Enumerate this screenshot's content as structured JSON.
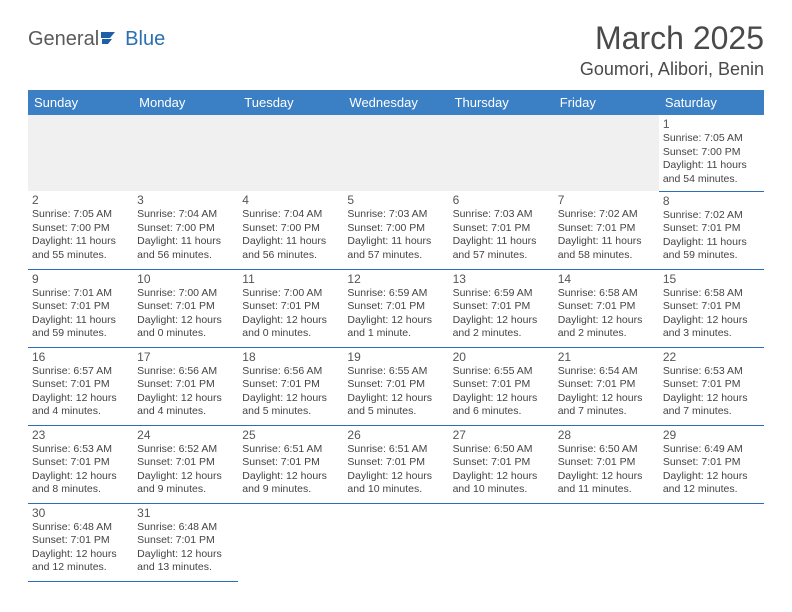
{
  "logo": {
    "general": "General",
    "blue": "Blue"
  },
  "title": "March 2025",
  "location": "Goumori, Alibori, Benin",
  "colors": {
    "header_bg": "#3b7fc4",
    "header_text": "#ffffff",
    "border": "#2a6fb5",
    "empty_bg": "#f0f0f0"
  },
  "day_headers": [
    "Sunday",
    "Monday",
    "Tuesday",
    "Wednesday",
    "Thursday",
    "Friday",
    "Saturday"
  ],
  "weeks": [
    [
      null,
      null,
      null,
      null,
      null,
      null,
      {
        "n": "1",
        "sunrise": "Sunrise: 7:05 AM",
        "sunset": "Sunset: 7:00 PM",
        "daylight": "Daylight: 11 hours and 54 minutes."
      }
    ],
    [
      {
        "n": "2",
        "sunrise": "Sunrise: 7:05 AM",
        "sunset": "Sunset: 7:00 PM",
        "daylight": "Daylight: 11 hours and 55 minutes."
      },
      {
        "n": "3",
        "sunrise": "Sunrise: 7:04 AM",
        "sunset": "Sunset: 7:00 PM",
        "daylight": "Daylight: 11 hours and 56 minutes."
      },
      {
        "n": "4",
        "sunrise": "Sunrise: 7:04 AM",
        "sunset": "Sunset: 7:00 PM",
        "daylight": "Daylight: 11 hours and 56 minutes."
      },
      {
        "n": "5",
        "sunrise": "Sunrise: 7:03 AM",
        "sunset": "Sunset: 7:00 PM",
        "daylight": "Daylight: 11 hours and 57 minutes."
      },
      {
        "n": "6",
        "sunrise": "Sunrise: 7:03 AM",
        "sunset": "Sunset: 7:01 PM",
        "daylight": "Daylight: 11 hours and 57 minutes."
      },
      {
        "n": "7",
        "sunrise": "Sunrise: 7:02 AM",
        "sunset": "Sunset: 7:01 PM",
        "daylight": "Daylight: 11 hours and 58 minutes."
      },
      {
        "n": "8",
        "sunrise": "Sunrise: 7:02 AM",
        "sunset": "Sunset: 7:01 PM",
        "daylight": "Daylight: 11 hours and 59 minutes."
      }
    ],
    [
      {
        "n": "9",
        "sunrise": "Sunrise: 7:01 AM",
        "sunset": "Sunset: 7:01 PM",
        "daylight": "Daylight: 11 hours and 59 minutes."
      },
      {
        "n": "10",
        "sunrise": "Sunrise: 7:00 AM",
        "sunset": "Sunset: 7:01 PM",
        "daylight": "Daylight: 12 hours and 0 minutes."
      },
      {
        "n": "11",
        "sunrise": "Sunrise: 7:00 AM",
        "sunset": "Sunset: 7:01 PM",
        "daylight": "Daylight: 12 hours and 0 minutes."
      },
      {
        "n": "12",
        "sunrise": "Sunrise: 6:59 AM",
        "sunset": "Sunset: 7:01 PM",
        "daylight": "Daylight: 12 hours and 1 minute."
      },
      {
        "n": "13",
        "sunrise": "Sunrise: 6:59 AM",
        "sunset": "Sunset: 7:01 PM",
        "daylight": "Daylight: 12 hours and 2 minutes."
      },
      {
        "n": "14",
        "sunrise": "Sunrise: 6:58 AM",
        "sunset": "Sunset: 7:01 PM",
        "daylight": "Daylight: 12 hours and 2 minutes."
      },
      {
        "n": "15",
        "sunrise": "Sunrise: 6:58 AM",
        "sunset": "Sunset: 7:01 PM",
        "daylight": "Daylight: 12 hours and 3 minutes."
      }
    ],
    [
      {
        "n": "16",
        "sunrise": "Sunrise: 6:57 AM",
        "sunset": "Sunset: 7:01 PM",
        "daylight": "Daylight: 12 hours and 4 minutes."
      },
      {
        "n": "17",
        "sunrise": "Sunrise: 6:56 AM",
        "sunset": "Sunset: 7:01 PM",
        "daylight": "Daylight: 12 hours and 4 minutes."
      },
      {
        "n": "18",
        "sunrise": "Sunrise: 6:56 AM",
        "sunset": "Sunset: 7:01 PM",
        "daylight": "Daylight: 12 hours and 5 minutes."
      },
      {
        "n": "19",
        "sunrise": "Sunrise: 6:55 AM",
        "sunset": "Sunset: 7:01 PM",
        "daylight": "Daylight: 12 hours and 5 minutes."
      },
      {
        "n": "20",
        "sunrise": "Sunrise: 6:55 AM",
        "sunset": "Sunset: 7:01 PM",
        "daylight": "Daylight: 12 hours and 6 minutes."
      },
      {
        "n": "21",
        "sunrise": "Sunrise: 6:54 AM",
        "sunset": "Sunset: 7:01 PM",
        "daylight": "Daylight: 12 hours and 7 minutes."
      },
      {
        "n": "22",
        "sunrise": "Sunrise: 6:53 AM",
        "sunset": "Sunset: 7:01 PM",
        "daylight": "Daylight: 12 hours and 7 minutes."
      }
    ],
    [
      {
        "n": "23",
        "sunrise": "Sunrise: 6:53 AM",
        "sunset": "Sunset: 7:01 PM",
        "daylight": "Daylight: 12 hours and 8 minutes."
      },
      {
        "n": "24",
        "sunrise": "Sunrise: 6:52 AM",
        "sunset": "Sunset: 7:01 PM",
        "daylight": "Daylight: 12 hours and 9 minutes."
      },
      {
        "n": "25",
        "sunrise": "Sunrise: 6:51 AM",
        "sunset": "Sunset: 7:01 PM",
        "daylight": "Daylight: 12 hours and 9 minutes."
      },
      {
        "n": "26",
        "sunrise": "Sunrise: 6:51 AM",
        "sunset": "Sunset: 7:01 PM",
        "daylight": "Daylight: 12 hours and 10 minutes."
      },
      {
        "n": "27",
        "sunrise": "Sunrise: 6:50 AM",
        "sunset": "Sunset: 7:01 PM",
        "daylight": "Daylight: 12 hours and 10 minutes."
      },
      {
        "n": "28",
        "sunrise": "Sunrise: 6:50 AM",
        "sunset": "Sunset: 7:01 PM",
        "daylight": "Daylight: 12 hours and 11 minutes."
      },
      {
        "n": "29",
        "sunrise": "Sunrise: 6:49 AM",
        "sunset": "Sunset: 7:01 PM",
        "daylight": "Daylight: 12 hours and 12 minutes."
      }
    ],
    [
      {
        "n": "30",
        "sunrise": "Sunrise: 6:48 AM",
        "sunset": "Sunset: 7:01 PM",
        "daylight": "Daylight: 12 hours and 12 minutes."
      },
      {
        "n": "31",
        "sunrise": "Sunrise: 6:48 AM",
        "sunset": "Sunset: 7:01 PM",
        "daylight": "Daylight: 12 hours and 13 minutes."
      },
      null,
      null,
      null,
      null,
      null
    ]
  ]
}
